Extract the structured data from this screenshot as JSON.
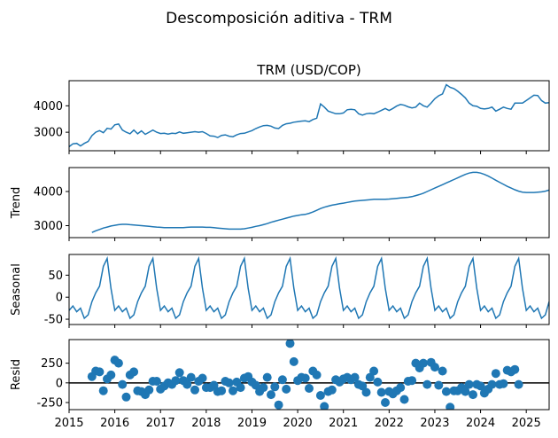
{
  "suptitle": "Descomposición aditiva - TRM",
  "chart_data": [
    {
      "type": "line",
      "panel": "observed",
      "title": "TRM (USD/COP)",
      "ylabel": "",
      "color": "#1f77b4",
      "xlim": [
        2015.0,
        2025.5
      ],
      "ylim": [
        2300,
        4950
      ],
      "yticks": [
        3000,
        4000
      ],
      "x_start": 2015.0,
      "x_step": 0.0833333,
      "values": [
        2450,
        2560,
        2580,
        2480,
        2580,
        2650,
        2870,
        3000,
        3060,
        2980,
        3150,
        3120,
        3280,
        3310,
        3080,
        3000,
        2940,
        3080,
        2940,
        3050,
        2920,
        3000,
        3080,
        3000,
        2950,
        2960,
        2930,
        2960,
        2950,
        3010,
        2960,
        2980,
        3000,
        3020,
        3000,
        3020,
        2950,
        2860,
        2850,
        2800,
        2880,
        2900,
        2850,
        2830,
        2900,
        2950,
        2960,
        3010,
        3060,
        3140,
        3200,
        3250,
        3260,
        3230,
        3160,
        3140,
        3260,
        3320,
        3340,
        3380,
        3400,
        3420,
        3430,
        3400,
        3480,
        3530,
        4070,
        3950,
        3800,
        3750,
        3700,
        3700,
        3730,
        3850,
        3870,
        3850,
        3700,
        3650,
        3700,
        3720,
        3700,
        3760,
        3830,
        3900,
        3820,
        3900,
        3990,
        4050,
        4020,
        3960,
        3920,
        3950,
        4100,
        4000,
        3950,
        4100,
        4270,
        4380,
        4450,
        4800,
        4700,
        4650,
        4550,
        4430,
        4300,
        4100,
        4000,
        3980,
        3900,
        3880,
        3900,
        3950,
        3800,
        3870,
        3950,
        3900,
        3870,
        4100,
        4100,
        4100,
        4200,
        4300,
        4400,
        4390,
        4200,
        4100,
        4120,
        4150,
        4080,
        4100,
        4200
      ],
      "line_width": 1.5
    },
    {
      "type": "line",
      "panel": "trend",
      "title": "",
      "ylabel": "Trend",
      "color": "#1f77b4",
      "xlim": [
        2015.0,
        2025.5
      ],
      "ylim": [
        2650,
        4700
      ],
      "yticks": [
        3000,
        4000
      ],
      "x_start": 2015.5,
      "x_step": 0.0833333,
      "values": [
        2800,
        2850,
        2890,
        2930,
        2960,
        2990,
        3010,
        3030,
        3040,
        3040,
        3030,
        3020,
        3010,
        3000,
        2990,
        2980,
        2970,
        2960,
        2950,
        2940,
        2940,
        2940,
        2940,
        2940,
        2940,
        2950,
        2960,
        2960,
        2960,
        2960,
        2950,
        2950,
        2940,
        2930,
        2920,
        2910,
        2900,
        2900,
        2900,
        2900,
        2910,
        2930,
        2950,
        2980,
        3000,
        3030,
        3060,
        3100,
        3130,
        3160,
        3190,
        3220,
        3250,
        3280,
        3300,
        3320,
        3330,
        3360,
        3400,
        3450,
        3500,
        3540,
        3570,
        3600,
        3620,
        3640,
        3660,
        3680,
        3700,
        3720,
        3730,
        3740,
        3750,
        3760,
        3770,
        3770,
        3770,
        3770,
        3780,
        3790,
        3800,
        3810,
        3820,
        3830,
        3850,
        3880,
        3910,
        3950,
        4000,
        4050,
        4100,
        4150,
        4200,
        4250,
        4300,
        4350,
        4400,
        4450,
        4500,
        4540,
        4560,
        4560,
        4540,
        4500,
        4450,
        4390,
        4330,
        4270,
        4210,
        4150,
        4100,
        4050,
        4010,
        3980,
        3970,
        3970,
        3970,
        3980,
        3990,
        4010,
        4040,
        4070,
        4100,
        4130,
        4150,
        4170,
        4180,
        4190,
        4200,
        4200,
        4200
      ],
      "line_width": 1.5
    },
    {
      "type": "line",
      "panel": "seasonal",
      "title": "",
      "ylabel": "Seasonal",
      "color": "#1f77b4",
      "xlim": [
        2015.0,
        2025.5
      ],
      "ylim": [
        -62,
        97
      ],
      "yticks": [
        -50,
        0,
        50
      ],
      "x_start": 2015.0,
      "x_step": 0.0833333,
      "pattern": [
        -30,
        -20,
        -33,
        -25,
        -48,
        -40,
        -10,
        10,
        25,
        70,
        88,
        20
      ],
      "n_points": 127,
      "line_width": 1.5
    },
    {
      "type": "scatter",
      "panel": "resid",
      "title": "",
      "ylabel": "Resid",
      "color": "#1f77b4",
      "xlim": [
        2015.0,
        2025.5
      ],
      "ylim": [
        -340,
        550
      ],
      "yticks": [
        -250,
        0,
        250
      ],
      "xticks": [
        "2015",
        "2016",
        "2017",
        "2018",
        "2019",
        "2020",
        "2021",
        "2022",
        "2023",
        "2024",
        "2025"
      ],
      "zero_line": true,
      "x_start": 2015.5,
      "x_step": 0.0833333,
      "values": [
        80,
        150,
        140,
        -100,
        50,
        100,
        290,
        250,
        -20,
        -180,
        100,
        140,
        -100,
        -110,
        -150,
        -90,
        20,
        20,
        -80,
        -40,
        0,
        -20,
        30,
        130,
        30,
        -20,
        70,
        -90,
        20,
        60,
        -60,
        -60,
        -30,
        -110,
        -100,
        20,
        0,
        -100,
        10,
        -60,
        60,
        80,
        10,
        -30,
        -110,
        -60,
        70,
        -150,
        -50,
        -280,
        40,
        -80,
        500,
        270,
        30,
        70,
        60,
        -70,
        150,
        100,
        -160,
        -300,
        -110,
        -90,
        40,
        10,
        50,
        70,
        40,
        70,
        -20,
        -40,
        -120,
        70,
        150,
        10,
        -120,
        -250,
        -110,
        -140,
        -100,
        -60,
        -210,
        20,
        30,
        250,
        190,
        250,
        -20,
        260,
        200,
        -30,
        150,
        -110,
        -310,
        -100,
        -100,
        -60,
        -110,
        -20,
        -150,
        -20,
        -40,
        -130,
        -80,
        -20,
        120,
        -20,
        -10,
        160,
        140,
        170,
        -20
      ],
      "marker_size": 5
    }
  ]
}
